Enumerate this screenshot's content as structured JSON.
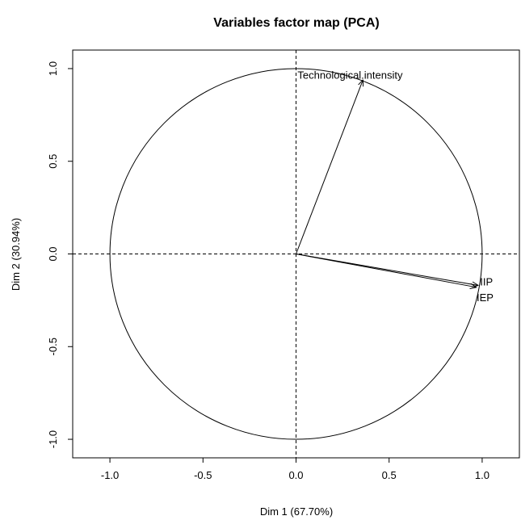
{
  "chart_data": {
    "type": "scatter",
    "subtype": "pca-correlation-circle",
    "title": "Variables factor map (PCA)",
    "xlabel": "Dim 1 (67.70%)",
    "ylabel": "Dim 2 (30.94%)",
    "xlim": [
      -1.2,
      1.2
    ],
    "ylim": [
      -1.1,
      1.1
    ],
    "x_ticks": [
      -1.0,
      -0.5,
      0.0,
      0.5,
      1.0
    ],
    "x_tick_labels": [
      "-1.0",
      "-0.5",
      "0.0",
      "0.5",
      "1.0"
    ],
    "y_ticks": [
      -1.0,
      -0.5,
      0.0,
      0.5,
      1.0
    ],
    "y_tick_labels": [
      "-1.0",
      "-0.5",
      "0.0",
      "0.5",
      "1.0"
    ],
    "circle_radius": 1.0,
    "reference_lines": {
      "x": 0,
      "y": 0,
      "style": "dashed"
    },
    "grid": false,
    "variables": [
      {
        "label": "Technological.intensity",
        "x": 0.36,
        "y": 0.94
      },
      {
        "label": "IIP",
        "x": 0.98,
        "y": -0.17
      },
      {
        "label": "IEP",
        "x": 0.97,
        "y": -0.18
      }
    ],
    "colors": {
      "arrows": "#000000",
      "circle": "#000000",
      "background": "#ffffff"
    }
  }
}
